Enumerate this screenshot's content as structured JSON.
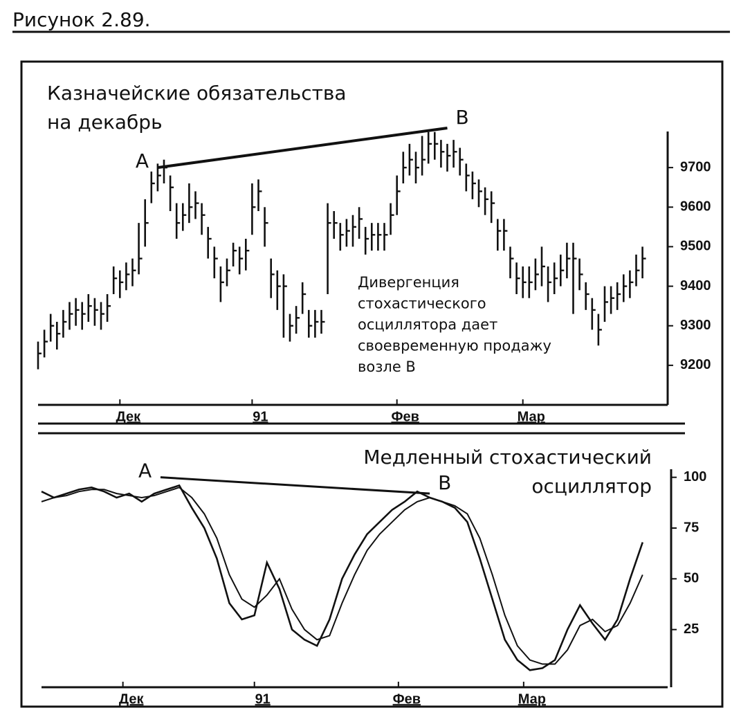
{
  "header": {
    "title": "Рисунок 2.89."
  },
  "chart_data": [
    {
      "type": "ohlc",
      "title_lines": [
        "Казначейские обязательства",
        "на декабрь"
      ],
      "annotation_lines": [
        "Дивергенция",
        "стохастического",
        "осциллятора дает",
        "своевременную продажу",
        "возле В"
      ],
      "point_labels": [
        "A",
        "B"
      ],
      "trendline": {
        "x": [
          19,
          65
        ],
        "y": [
          9700,
          9800
        ]
      },
      "x": [
        0,
        1,
        2,
        3,
        4,
        5,
        6,
        7,
        8,
        9,
        10,
        11,
        12,
        13,
        14,
        15,
        16,
        17,
        18,
        19,
        20,
        21,
        22,
        23,
        24,
        25,
        26,
        27,
        28,
        29,
        30,
        31,
        32,
        33,
        34,
        35,
        36,
        37,
        38,
        39,
        40,
        41,
        42,
        43,
        44,
        45,
        46,
        47,
        48,
        49,
        50,
        51,
        52,
        53,
        54,
        55,
        56,
        57,
        58,
        59,
        60,
        61,
        62,
        63,
        64,
        65,
        66,
        67,
        68,
        69,
        70,
        71,
        72,
        73,
        74,
        75,
        76,
        77,
        78,
        79,
        80,
        81,
        82,
        83,
        84,
        85,
        86,
        87,
        88,
        89,
        90,
        91,
        92,
        93,
        94,
        95,
        96
      ],
      "high": [
        9260,
        9290,
        9330,
        9310,
        9340,
        9360,
        9370,
        9360,
        9380,
        9370,
        9360,
        9380,
        9450,
        9440,
        9460,
        9470,
        9560,
        9620,
        9690,
        9710,
        9720,
        9680,
        9610,
        9610,
        9660,
        9640,
        9610,
        9550,
        9500,
        9450,
        9470,
        9510,
        9500,
        9520,
        9660,
        9670,
        9600,
        9470,
        9440,
        9430,
        9330,
        9350,
        9410,
        9340,
        9340,
        9340,
        9610,
        9590,
        9560,
        9570,
        9580,
        9600,
        9550,
        9560,
        9560,
        9560,
        9610,
        9680,
        9740,
        9760,
        9740,
        9780,
        9790,
        9790,
        9770,
        9760,
        9770,
        9750,
        9710,
        9690,
        9670,
        9650,
        9640,
        9570,
        9570,
        9500,
        9460,
        9450,
        9450,
        9470,
        9500,
        9450,
        9460,
        9480,
        9510,
        9510,
        9470,
        9410,
        9370,
        9330,
        9400,
        9400,
        9410,
        9430,
        9440,
        9480,
        9500
      ],
      "low": [
        9190,
        9220,
        9260,
        9240,
        9270,
        9290,
        9300,
        9290,
        9310,
        9300,
        9290,
        9310,
        9380,
        9370,
        9390,
        9400,
        9430,
        9500,
        9610,
        9640,
        9660,
        9590,
        9520,
        9540,
        9560,
        9570,
        9530,
        9470,
        9420,
        9360,
        9400,
        9450,
        9430,
        9440,
        9530,
        9590,
        9500,
        9370,
        9340,
        9270,
        9260,
        9280,
        9330,
        9270,
        9270,
        9280,
        9380,
        9520,
        9490,
        9500,
        9500,
        9520,
        9480,
        9490,
        9490,
        9490,
        9530,
        9580,
        9660,
        9680,
        9660,
        9680,
        9710,
        9720,
        9700,
        9690,
        9700,
        9680,
        9640,
        9620,
        9600,
        9580,
        9560,
        9490,
        9490,
        9420,
        9380,
        9370,
        9370,
        9390,
        9400,
        9360,
        9380,
        9400,
        9420,
        9330,
        9390,
        9340,
        9290,
        9250,
        9310,
        9330,
        9340,
        9360,
        9370,
        9400,
        9420
      ],
      "close": [
        9230,
        9260,
        9300,
        9280,
        9310,
        9330,
        9340,
        9330,
        9350,
        9340,
        9330,
        9350,
        9420,
        9410,
        9430,
        9440,
        9470,
        9560,
        9660,
        9680,
        9700,
        9650,
        9560,
        9580,
        9600,
        9610,
        9580,
        9520,
        9470,
        9410,
        9440,
        9490,
        9470,
        9490,
        9600,
        9640,
        9560,
        9430,
        9400,
        9400,
        9300,
        9320,
        9380,
        9300,
        9310,
        9310,
        9560,
        9560,
        9530,
        9540,
        9550,
        9570,
        9520,
        9530,
        9530,
        9530,
        9580,
        9640,
        9700,
        9720,
        9700,
        9720,
        9760,
        9760,
        9740,
        9730,
        9740,
        9720,
        9680,
        9660,
        9640,
        9620,
        9610,
        9540,
        9540,
        9470,
        9420,
        9410,
        9410,
        9430,
        9450,
        9410,
        9420,
        9440,
        9470,
        9470,
        9430,
        9380,
        9340,
        9290,
        9360,
        9370,
        9380,
        9400,
        9410,
        9440,
        9470
      ],
      "color": "#111",
      "xlim": [
        0,
        100
      ],
      "xticks": [
        {
          "value": 13,
          "label": "Дек"
        },
        {
          "value": 34,
          "label": "91"
        },
        {
          "value": 57,
          "label": "Фев"
        },
        {
          "value": 77,
          "label": "Мар"
        }
      ],
      "ylim": [
        9100,
        9800
      ],
      "yticks": [
        9200,
        9300,
        9400,
        9500,
        9600,
        9700
      ]
    },
    {
      "type": "line",
      "title_lines": [
        "Медленный стохастический",
        "осциллятор"
      ],
      "point_labels": [
        "A",
        "B"
      ],
      "trendline": {
        "x": [
          19,
          62
        ],
        "y": [
          100,
          92
        ]
      },
      "x": [
        0,
        2,
        4,
        6,
        8,
        10,
        12,
        14,
        16,
        18,
        20,
        22,
        24,
        26,
        28,
        30,
        32,
        34,
        36,
        38,
        40,
        42,
        44,
        46,
        48,
        50,
        52,
        54,
        56,
        58,
        60,
        62,
        64,
        66,
        68,
        70,
        72,
        74,
        76,
        78,
        80,
        82,
        84,
        86,
        88,
        90,
        92,
        94,
        96
      ],
      "series": [
        {
          "color": "#111",
          "values": [
            93,
            90,
            92,
            94,
            95,
            93,
            90,
            92,
            88,
            92,
            94,
            96,
            85,
            75,
            60,
            38,
            30,
            32,
            58,
            45,
            25,
            20,
            17,
            30,
            50,
            62,
            72,
            78,
            84,
            88,
            93,
            90,
            88,
            85,
            78,
            60,
            40,
            20,
            10,
            5,
            6,
            10,
            25,
            37,
            28,
            20,
            30,
            50,
            68
          ]
        },
        {
          "color": "#111",
          "values": [
            88,
            90,
            91,
            93,
            94,
            94,
            92,
            91,
            90,
            91,
            93,
            95,
            90,
            82,
            70,
            52,
            40,
            36,
            42,
            50,
            35,
            25,
            20,
            22,
            38,
            52,
            64,
            72,
            78,
            84,
            88,
            90,
            88,
            86,
            82,
            70,
            52,
            32,
            17,
            10,
            8,
            8,
            15,
            27,
            30,
            24,
            27,
            38,
            52
          ]
        }
      ],
      "xlim": [
        0,
        100
      ],
      "xticks": [
        {
          "value": 13,
          "label": "Дек"
        },
        {
          "value": 34,
          "label": "91"
        },
        {
          "value": 57,
          "label": "Фев"
        },
        {
          "value": 77,
          "label": "Мар"
        }
      ],
      "ylim": [
        0,
        105
      ],
      "yticks": [
        25,
        50,
        75,
        100
      ]
    }
  ]
}
